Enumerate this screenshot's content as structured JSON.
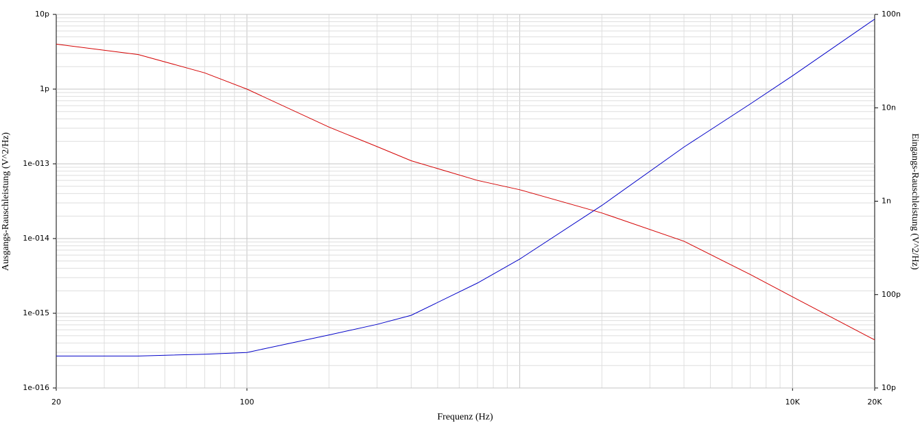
{
  "chart_data": {
    "type": "line",
    "xlabel": "Frequenz (Hz)",
    "ylabel": "Ausgangs-Rauschleistung (V^2/Hz)",
    "y2label": "Eingangs-Rauschleistung (V^2/Hz)",
    "xscale": "log",
    "yscale": "log",
    "y2scale": "log",
    "grid": true,
    "x": [
      20,
      40,
      70,
      100,
      200,
      300,
      400,
      700,
      1000,
      2000,
      4000,
      7000,
      10000,
      20000
    ],
    "series": [
      {
        "color": "#d40000",
        "values": [
          4e-12,
          2.9e-12,
          1.65e-12,
          1e-12,
          3.1e-13,
          1.7e-13,
          1.1e-13,
          6e-14,
          4.5e-14,
          2.2e-14,
          9.2e-15,
          3.3e-15,
          1.66e-15,
          4.4e-16
        ]
      },
      {
        "color": "#0000c8",
        "axis": "y2",
        "values": [
          2.2e-11,
          2.2e-11,
          2.3e-11,
          2.4e-11,
          3.7e-11,
          4.8e-11,
          6e-11,
          1.33e-10,
          2.4e-10,
          9e-10,
          3.8e-09,
          1.1e-08,
          2.2e-08,
          8.9e-08
        ]
      }
    ],
    "xlim": [
      20,
      20000
    ],
    "xticks": [
      20,
      100,
      {
        "value": 10000,
        "label": "10K"
      },
      {
        "value": 20000,
        "label": "20K"
      }
    ],
    "ylim": [
      1e-16,
      1e-11
    ],
    "yticks": [
      {
        "value": 1e-16,
        "label": "1e-016"
      },
      {
        "value": 1e-15,
        "label": "1e-015"
      },
      {
        "value": 1e-14,
        "label": "1e-014"
      },
      {
        "value": 1e-13,
        "label": "1e-013"
      },
      {
        "value": 1e-12,
        "label": "1p"
      },
      {
        "value": 1e-11,
        "label": "10p"
      }
    ],
    "y2lim": [
      1e-11,
      1e-07
    ],
    "y2ticks": [
      {
        "value": 1e-11,
        "label": "10p"
      },
      {
        "value": 1e-10,
        "label": "100p"
      },
      {
        "value": 1e-09,
        "label": "1n"
      },
      {
        "value": 1e-08,
        "label": "10n"
      },
      {
        "value": 1e-07,
        "label": "100n"
      }
    ]
  }
}
